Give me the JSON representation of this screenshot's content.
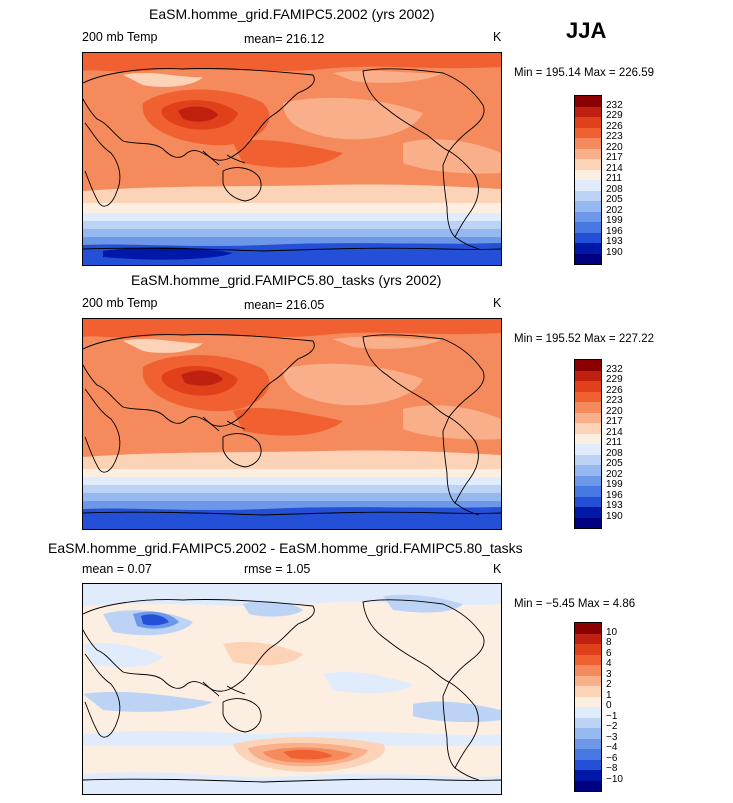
{
  "season": "JJA",
  "panels": [
    {
      "title": "EaSM.homme_grid.FAMIPC5.2002 (yrs 2002)",
      "left_label": "200 mb Temp",
      "center_label": "mean= 216.12",
      "units": "K",
      "minmax": "Min = 195.14 Max = 226.59",
      "colorbar": {
        "labels": [
          "232",
          "229",
          "226",
          "223",
          "220",
          "217",
          "214",
          "211",
          "208",
          "205",
          "202",
          "199",
          "196",
          "193",
          "190"
        ],
        "colors": [
          "#8b0000",
          "#c0200f",
          "#e0401a",
          "#f06030",
          "#f58a5c",
          "#f9b08a",
          "#fcd3b7",
          "#fdeee2",
          "#e0ecfb",
          "#bcd3f5",
          "#96b8f0",
          "#6d98ea",
          "#4878e3",
          "#2350d6",
          "#0018a8",
          "#000080"
        ]
      }
    },
    {
      "title": "EaSM.homme_grid.FAMIPC5.80_tasks (yrs 2002)",
      "left_label": "200 mb Temp",
      "center_label": "mean= 216.05",
      "units": "K",
      "minmax": "Min = 195.52 Max = 227.22",
      "colorbar": {
        "labels": [
          "232",
          "229",
          "226",
          "223",
          "220",
          "217",
          "214",
          "211",
          "208",
          "205",
          "202",
          "199",
          "196",
          "193",
          "190"
        ],
        "colors": [
          "#8b0000",
          "#c0200f",
          "#e0401a",
          "#f06030",
          "#f58a5c",
          "#f9b08a",
          "#fcd3b7",
          "#fdeee2",
          "#e0ecfb",
          "#bcd3f5",
          "#96b8f0",
          "#6d98ea",
          "#4878e3",
          "#2350d6",
          "#0018a8",
          "#000080"
        ]
      }
    },
    {
      "title": "EaSM.homme_grid.FAMIPC5.2002 - EaSM.homme_grid.FAMIPC5.80_tasks",
      "left_label": "mean =    0.07",
      "center_label": "rmse =     1.05",
      "units": "K",
      "minmax": "Min =  −5.45 Max =    4.86",
      "colorbar": {
        "labels": [
          "10",
          "8",
          "6",
          "4",
          "3",
          "2",
          "1",
          "0",
          "−1",
          "−2",
          "−3",
          "−4",
          "−6",
          "−8",
          "−10"
        ],
        "colors": [
          "#8b0000",
          "#c0200f",
          "#e0401a",
          "#f06030",
          "#f58a5c",
          "#f9b08a",
          "#fcd3b7",
          "#fdeee2",
          "#e0ecfb",
          "#bcd3f5",
          "#96b8f0",
          "#6d98ea",
          "#4878e3",
          "#2350d6",
          "#0018a8",
          "#000080"
        ]
      }
    }
  ]
}
